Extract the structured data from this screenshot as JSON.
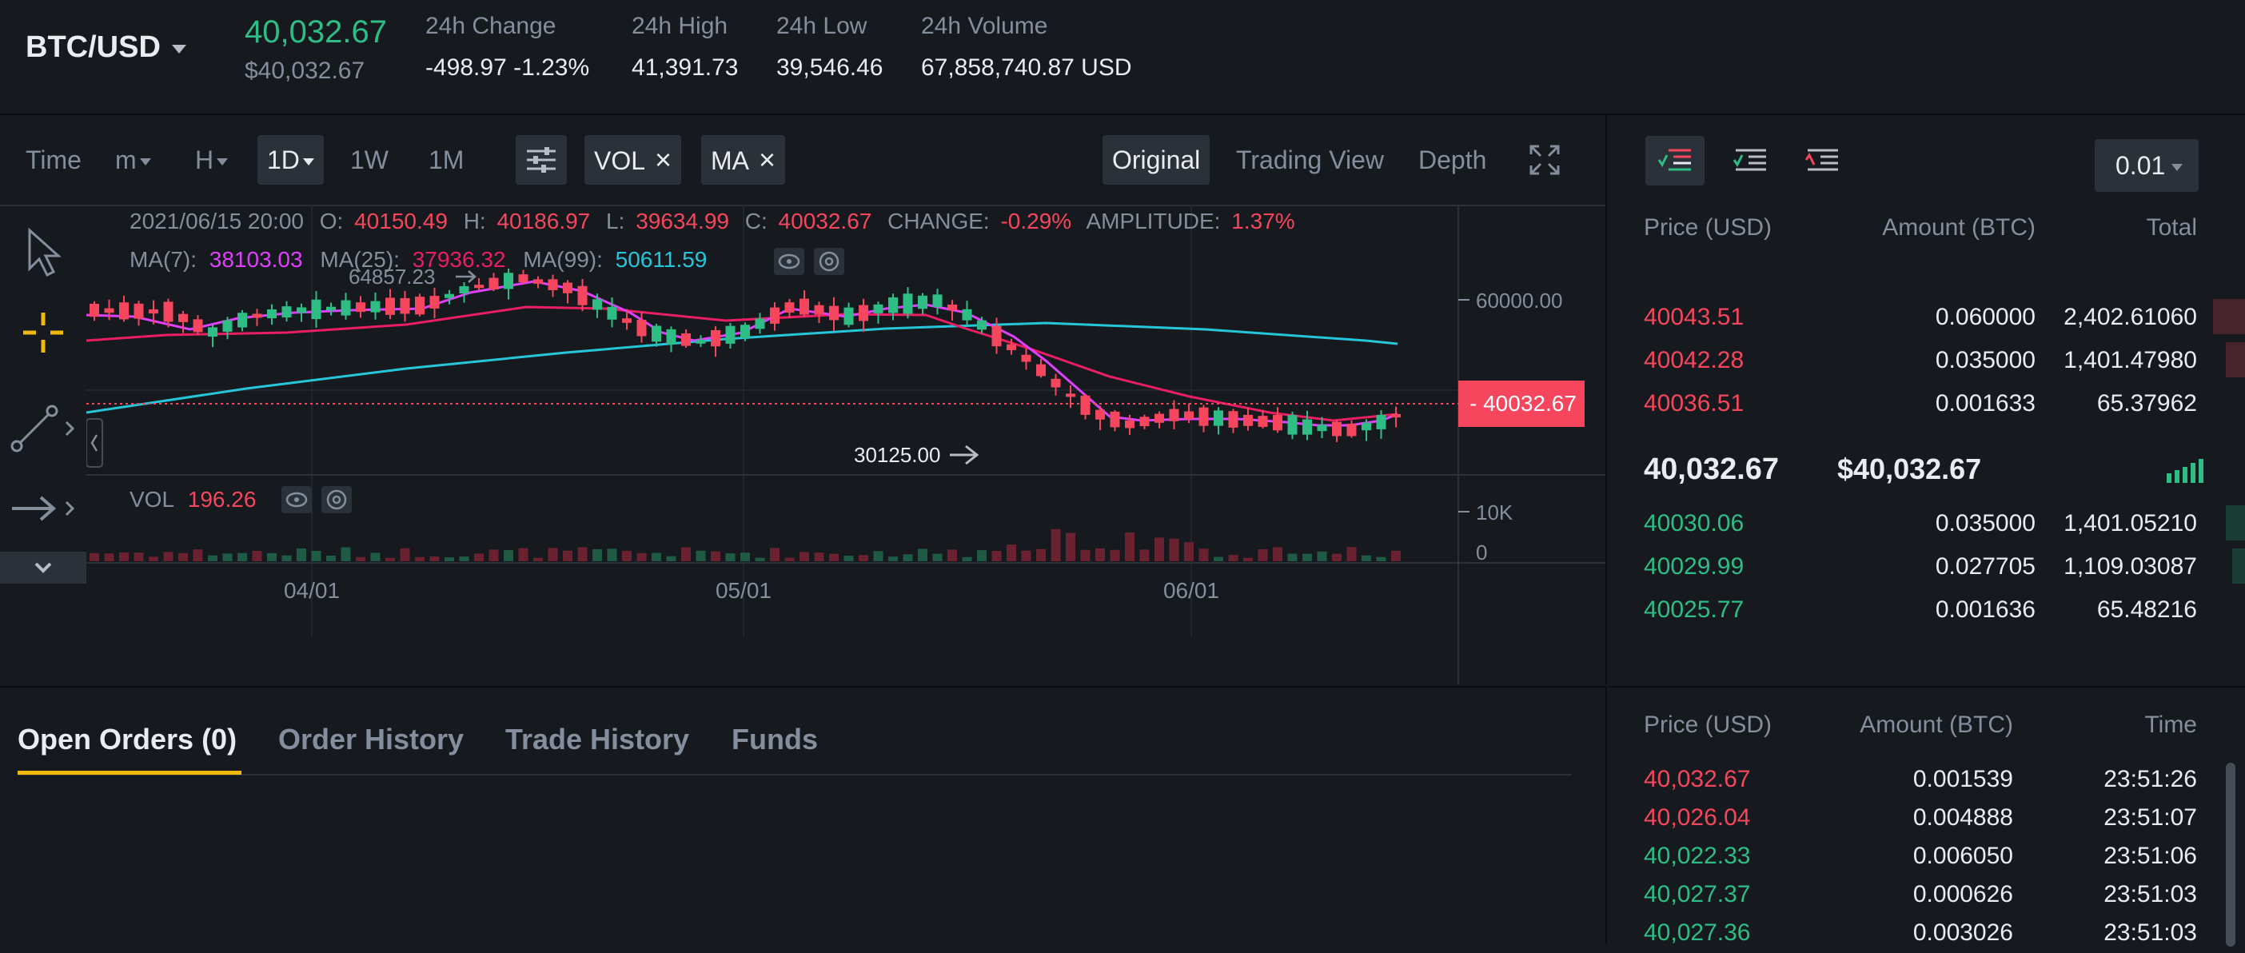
{
  "ticker": {
    "pair": "BTC/USD",
    "last_price": "40,032.67",
    "last_price_usd": "$40,032.67",
    "change_label": "24h Change",
    "change_value": "-498.97 -1.23%",
    "high_label": "24h High",
    "high_value": "41,391.73",
    "low_label": "24h Low",
    "low_value": "39,546.46",
    "volume_label": "24h Volume",
    "volume_value": "67,858,740.87 USD"
  },
  "toolbar": {
    "time": "Time",
    "minute": "m",
    "hour": "H",
    "day": "1D",
    "week": "1W",
    "month": "1M",
    "vol_chip": "VOL",
    "ma_chip": "MA",
    "original": "Original",
    "trading_view": "Trading View",
    "depth": "Depth"
  },
  "chart_info": {
    "date": "2021/06/15 20:00",
    "o_label": "O:",
    "o": "40150.49",
    "h_label": "H:",
    "h": "40186.97",
    "l_label": "L:",
    "l": "39634.99",
    "c_label": "C:",
    "c": "40032.67",
    "change_label": "CHANGE:",
    "change": "-0.29%",
    "amplitude_label": "AMPLITUDE:",
    "amplitude": "1.37%",
    "ma7_label": "MA(7):",
    "ma7": "38103.03",
    "ma25_label": "MA(25):",
    "ma25": "37936.32",
    "ma99_label": "MA(99):",
    "ma99": "50611.59",
    "high_marker": "64857.23",
    "low_marker": "30125.00",
    "vol_label": "VOL",
    "vol": "196.26"
  },
  "chart_data": {
    "type": "candlestick",
    "x_ticks": [
      "04/01",
      "05/01",
      "06/01"
    ],
    "y_ticks": [
      "60000.00"
    ],
    "vol_ticks": [
      "10K",
      "0"
    ],
    "current_price_label": "40032.67",
    "colors": {
      "up": "#2ebd85",
      "down": "#f6465d",
      "ma7": "#e040fb",
      "ma25": "#e91e63",
      "ma99": "#26c6da"
    }
  },
  "orderbook": {
    "precision": "0.01",
    "headers": {
      "price": "Price (USD)",
      "amount": "Amount (BTC)",
      "total": "Total"
    },
    "asks": [
      {
        "price": "40043.51",
        "amount": "0.060000",
        "total": "2,402.61060",
        "depth": 0.05
      },
      {
        "price": "40042.28",
        "amount": "0.035000",
        "total": "1,401.47980",
        "depth": 0.03
      },
      {
        "price": "40036.51",
        "amount": "0.001633",
        "total": "65.37962",
        "depth": 0.0
      }
    ],
    "mid_price": "40,032.67",
    "mid_usd": "$40,032.67",
    "bids": [
      {
        "price": "40030.06",
        "amount": "0.035000",
        "total": "1,401.05210",
        "depth": 0.03
      },
      {
        "price": "40029.99",
        "amount": "0.027705",
        "total": "1,109.03087",
        "depth": 0.02
      },
      {
        "price": "40025.77",
        "amount": "0.001636",
        "total": "65.48216",
        "depth": 0.0
      }
    ]
  },
  "orders": {
    "tabs": [
      "Open Orders (0)",
      "Order History",
      "Trade History",
      "Funds"
    ]
  },
  "trades": {
    "headers": {
      "price": "Price (USD)",
      "amount": "Amount (BTC)",
      "time": "Time"
    },
    "rows": [
      {
        "price": "40,032.67",
        "amount": "0.001539",
        "time": "23:51:26",
        "side": "sell"
      },
      {
        "price": "40,026.04",
        "amount": "0.004888",
        "time": "23:51:07",
        "side": "sell"
      },
      {
        "price": "40,022.33",
        "amount": "0.006050",
        "time": "23:51:06",
        "side": "buy"
      },
      {
        "price": "40,027.37",
        "amount": "0.000626",
        "time": "23:51:03",
        "side": "buy"
      },
      {
        "price": "40,027.36",
        "amount": "0.003026",
        "time": "23:51:03",
        "side": "buy"
      }
    ]
  }
}
